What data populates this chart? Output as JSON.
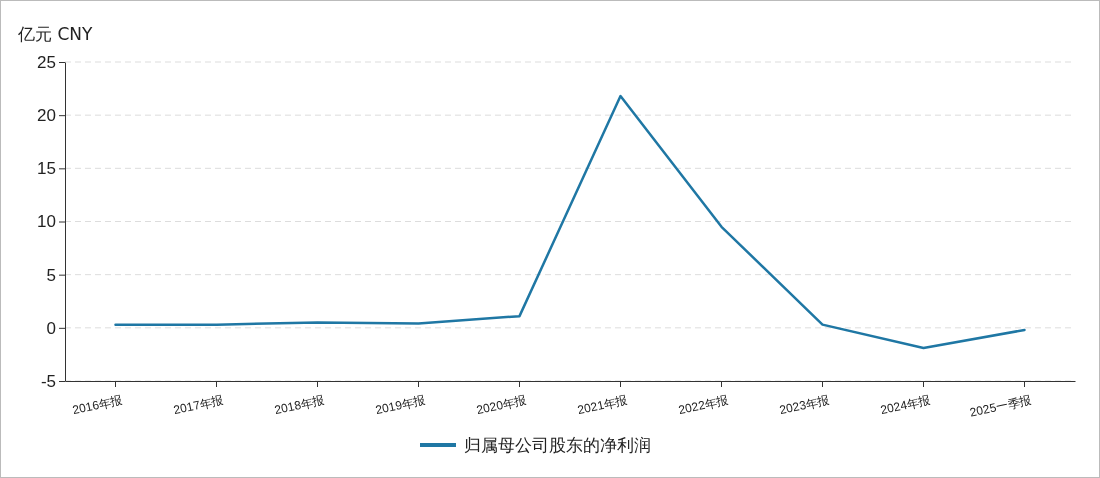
{
  "chart_data": {
    "type": "line",
    "ylabel": "亿元  CNY",
    "categories": [
      "2016年报",
      "2017年报",
      "2018年报",
      "2019年报",
      "2020年报",
      "2021年报",
      "2022年报",
      "2023年报",
      "2024年报",
      "2025一季报"
    ],
    "series": [
      {
        "name": "归属母公司股东的净利润",
        "color": "#1f77a4",
        "values": [
          0.3,
          0.3,
          0.5,
          0.4,
          1.1,
          21.8,
          9.5,
          0.3,
          -1.9,
          -0.2
        ]
      }
    ],
    "ylim": [
      -5,
      25
    ],
    "yticks": [
      -5,
      0,
      5,
      10,
      15,
      20,
      25
    ],
    "grid": "y",
    "legend": "bottom",
    "marker": "none",
    "line_style": "solid"
  }
}
